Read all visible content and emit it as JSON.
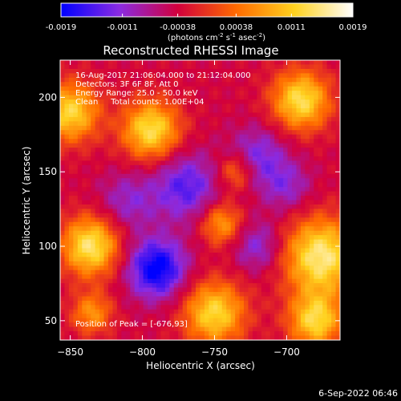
{
  "chart_data": {
    "type": "heatmap",
    "title": "Reconstructed RHESSI Image",
    "xlabel": "Heliocentric X (arcsec)",
    "ylabel": "Heliocentric Y (arcsec)",
    "xlim": [
      -857,
      -663
    ],
    "ylim": [
      37,
      225
    ],
    "x_ticks": [
      -850,
      -800,
      -750,
      -700
    ],
    "y_ticks": [
      50,
      100,
      150,
      200
    ],
    "colorbar": {
      "min": -0.0019,
      "max": 0.0019,
      "ticks": [
        "-0.0019",
        "-0.0011",
        "-0.00038",
        "0.00038",
        "0.0011",
        "0.0019"
      ],
      "units_parts": [
        "(photons cm",
        "-2",
        " s",
        "-1",
        " asec",
        "-2",
        ")"
      ],
      "colors": [
        "#0000ff",
        "#8a2be2",
        "#d2003c",
        "#ff6a00",
        "#ffd21f",
        "#ffffff"
      ]
    },
    "annotations": {
      "time_range": "16-Aug-2017 21:06:04.000 to 21:12:04.000",
      "detectors": "Detectors: 3F 6F 8F, Att 0",
      "energy": "Energy Range: 25.0 - 50.0 keV",
      "clean": "Clean     Total counts: 1.00E+04",
      "peak": "Position of Peak = [-676,93]"
    },
    "blobs": [
      {
        "x": -676,
        "y": 93,
        "r": 18,
        "amp": 1.0
      },
      {
        "x": -836,
        "y": 100,
        "r": 14,
        "amp": 0.95
      },
      {
        "x": -794,
        "y": 178,
        "r": 14,
        "amp": 0.9
      },
      {
        "x": -690,
        "y": 198,
        "r": 14,
        "amp": 0.9
      },
      {
        "x": -750,
        "y": 55,
        "r": 15,
        "amp": 0.85
      },
      {
        "x": -680,
        "y": 50,
        "r": 13,
        "amp": 0.85
      },
      {
        "x": -850,
        "y": 190,
        "r": 14,
        "amp": 0.85
      },
      {
        "x": -745,
        "y": 115,
        "r": 10,
        "amp": 0.6
      },
      {
        "x": -735,
        "y": 150,
        "r": 9,
        "amp": 0.5
      },
      {
        "x": -835,
        "y": 55,
        "r": 10,
        "amp": 0.55
      },
      {
        "x": -790,
        "y": 85,
        "r": 14,
        "amp": -0.85
      },
      {
        "x": -770,
        "y": 140,
        "r": 16,
        "amp": -0.55
      },
      {
        "x": -720,
        "y": 160,
        "r": 14,
        "amp": -0.45
      },
      {
        "x": -810,
        "y": 130,
        "r": 14,
        "amp": -0.35
      },
      {
        "x": -720,
        "y": 100,
        "r": 12,
        "amp": -0.4
      },
      {
        "x": -700,
        "y": 140,
        "r": 12,
        "amp": -0.35
      }
    ],
    "background_level": -0.2
  },
  "footer": {
    "date": "6-Sep-2022 06:46"
  }
}
